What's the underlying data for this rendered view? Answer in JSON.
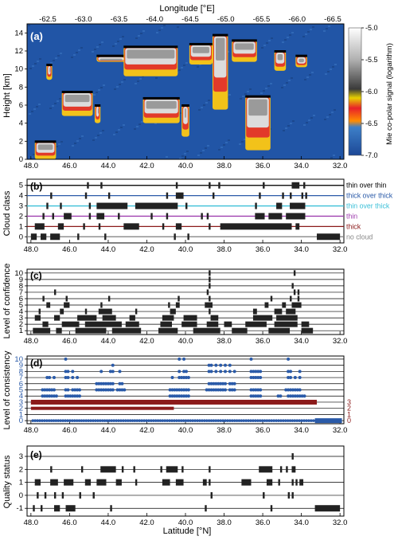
{
  "figure": {
    "top_axis_label": "Longitude [°E]",
    "bottom_axis_label": "Latitude [°N]",
    "longitude_ticks": [
      "-62.5",
      "-63.0",
      "-63.5",
      "-64.0",
      "-64.5",
      "-65.0",
      "-65.5",
      "-66.0",
      "-66.5"
    ],
    "latitude_ticks": [
      "48.0",
      "46.0",
      "44.0",
      "42.0",
      "40.0",
      "38.0",
      "36.0",
      "34.0",
      "32.0"
    ]
  },
  "chart_data": [
    {
      "panel": "(a)",
      "type": "heatmap",
      "ylabel": "Height [km]",
      "yticks": [
        "0",
        "2",
        "4",
        "6",
        "8",
        "10",
        "12",
        "14"
      ],
      "ylim": [
        0,
        15
      ],
      "colorbar": {
        "label": "Mie co-polar signal (logarithm)",
        "ticks": [
          "-5.0",
          "-5.5",
          "-6.0",
          "-6.5",
          "-7.0"
        ],
        "range": [
          -7.0,
          -5.0
        ]
      },
      "background_value": -6.8,
      "cloud_features": [
        {
          "lat": [
            47.8,
            46.7
          ],
          "top": 2.0,
          "base": 0.0
        },
        {
          "lat": [
            47.2,
            46.9
          ],
          "top": 10.5,
          "base": 8.8
        },
        {
          "lat": [
            46.4,
            44.8
          ],
          "top": 7.5,
          "base": 4.8
        },
        {
          "lat": [
            44.7,
            44.4
          ],
          "top": 6.0,
          "base": 4.0
        },
        {
          "lat": [
            44.6,
            43.1
          ],
          "top": 11.5,
          "base": 10.8
        },
        {
          "lat": [
            43.2,
            40.4
          ],
          "top": 12.5,
          "base": 9.2
        },
        {
          "lat": [
            42.2,
            40.3
          ],
          "top": 6.8,
          "base": 4.0
        },
        {
          "lat": [
            40.2,
            39.8
          ],
          "top": 6.0,
          "base": 2.5
        },
        {
          "lat": [
            39.8,
            38.6
          ],
          "top": 12.8,
          "base": 10.5
        },
        {
          "lat": [
            38.6,
            37.8
          ],
          "top": 13.8,
          "base": 5.5
        },
        {
          "lat": [
            37.6,
            36.3
          ],
          "top": 13.2,
          "base": 10.8
        },
        {
          "lat": [
            36.9,
            35.6
          ],
          "top": 7.0,
          "base": 1.0
        },
        {
          "lat": [
            35.4,
            34.8
          ],
          "top": 12.0,
          "base": 9.8
        },
        {
          "lat": [
            34.3,
            33.7
          ],
          "top": 11.5,
          "base": 10.2
        }
      ]
    },
    {
      "panel": "(b)",
      "type": "scatter",
      "ylabel": "Cloud class",
      "yticks": [
        "0",
        "1",
        "2",
        "3",
        "4",
        "5"
      ],
      "ylim": [
        -0.6,
        5.6
      ],
      "series": [
        {
          "name": "thin over thin",
          "level": 5,
          "color": "#000000",
          "segments": [
            [
              45.1,
              45.0
            ],
            [
              44.4,
              44.3
            ],
            [
              40.5,
              40.4
            ],
            [
              38.8,
              38.7
            ],
            [
              38.3,
              38.2
            ],
            [
              36.0,
              35.9
            ],
            [
              34.5,
              34.1
            ],
            [
              33.9,
              33.8
            ]
          ]
        },
        {
          "name": "thick over thick",
          "level": 4,
          "color": "#2a5aa8",
          "segments": [
            [
              47.0,
              46.9
            ],
            [
              45.2,
              45.1
            ],
            [
              44.0,
              43.9
            ],
            [
              41.0,
              40.9
            ],
            [
              40.5,
              40.1
            ],
            [
              38.6,
              38.5
            ],
            [
              36.2,
              36.1
            ],
            [
              35.0,
              34.9
            ],
            [
              34.6,
              34.5
            ],
            [
              34.0,
              33.9
            ],
            [
              33.8,
              33.7
            ]
          ]
        },
        {
          "name": "thin over thick",
          "level": 3,
          "color": "#3cc0d8",
          "segments": [
            [
              47.2,
              47.1
            ],
            [
              46.5,
              46.4
            ],
            [
              45.0,
              44.9
            ],
            [
              44.6,
              43.0
            ],
            [
              42.6,
              40.4
            ],
            [
              40.0,
              39.9
            ],
            [
              36.4,
              36.3
            ],
            [
              35.3,
              35.0
            ],
            [
              34.6,
              33.8
            ]
          ]
        },
        {
          "name": "thin",
          "level": 2,
          "color": "#a040b0",
          "segments": [
            [
              47.4,
              47.3
            ],
            [
              46.9,
              46.8
            ],
            [
              46.3,
              45.9
            ],
            [
              45.0,
              44.9
            ],
            [
              44.6,
              44.2
            ],
            [
              43.5,
              43.4
            ],
            [
              41.8,
              41.7
            ],
            [
              41.0,
              40.9
            ],
            [
              39.2,
              39.1
            ],
            [
              38.9,
              38.8
            ],
            [
              36.4,
              35.9
            ],
            [
              35.7,
              35.0
            ],
            [
              34.8,
              33.8
            ]
          ]
        },
        {
          "name": "thick",
          "level": 1,
          "color": "#8b1a1a",
          "segments": [
            [
              47.8,
              47.3
            ],
            [
              46.6,
              46.3
            ],
            [
              45.3,
              45.2
            ],
            [
              44.5,
              44.4
            ],
            [
              43.2,
              42.4
            ],
            [
              41.2,
              41.1
            ],
            [
              40.5,
              40.2
            ],
            [
              38.8,
              38.7
            ],
            [
              38.2,
              34.5
            ],
            [
              34.3,
              34.1
            ]
          ]
        },
        {
          "name": "no cloud",
          "level": 0,
          "color": "#888888",
          "segments": [
            [
              48.0,
              47.7
            ],
            [
              47.5,
              47.2
            ],
            [
              47.0,
              46.5
            ],
            [
              45.6,
              45.5
            ],
            [
              44.2,
              44.1
            ],
            [
              40.6,
              40.5
            ],
            [
              39.9,
              39.8
            ],
            [
              33.2,
              32.0
            ]
          ]
        }
      ]
    },
    {
      "panel": "(c)",
      "type": "scatter",
      "ylabel": "Level of confidence",
      "yticks": [
        "1",
        "2",
        "3",
        "4",
        "5",
        "6",
        "7",
        "8",
        "9",
        "10"
      ],
      "ylim": [
        0.4,
        10.6
      ],
      "rows": [
        {
          "level": 10,
          "segments": [
            [
              38.8,
              38.7
            ],
            [
              34.4,
              34.3
            ]
          ]
        },
        {
          "level": 9,
          "segments": [
            [
              38.8,
              38.7
            ]
          ]
        },
        {
          "level": 8,
          "segments": [
            [
              38.8,
              38.7
            ],
            [
              34.5,
              34.4
            ]
          ]
        },
        {
          "level": 7,
          "segments": [
            [
              46.8,
              46.7
            ],
            [
              38.9,
              38.8
            ],
            [
              34.4,
              34.3
            ],
            [
              34.2,
              34.1
            ]
          ]
        },
        {
          "level": 6,
          "segments": [
            [
              47.4,
              47.3
            ],
            [
              46.2,
              46.1
            ],
            [
              44.0,
              43.9
            ],
            [
              40.4,
              40.3
            ],
            [
              38.8,
              38.7
            ],
            [
              35.6,
              35.5
            ],
            [
              34.6,
              34.5
            ],
            [
              34.2,
              34.1
            ]
          ]
        },
        {
          "level": 5,
          "segments": [
            [
              47.2,
              47.0
            ],
            [
              46.3,
              46.0
            ],
            [
              44.4,
              44.3
            ],
            [
              40.9,
              40.8
            ],
            [
              40.5,
              40.3
            ],
            [
              39.0,
              38.6
            ],
            [
              35.9,
              35.7
            ],
            [
              35.0,
              34.8
            ],
            [
              34.5,
              34.0
            ]
          ]
        },
        {
          "level": 4,
          "segments": [
            [
              47.6,
              47.5
            ],
            [
              46.5,
              46.3
            ],
            [
              45.2,
              45.1
            ],
            [
              44.5,
              43.8
            ],
            [
              42.6,
              42.5
            ],
            [
              40.8,
              40.5
            ],
            [
              38.8,
              38.7
            ],
            [
              36.5,
              36.3
            ],
            [
              35.4,
              35.0
            ],
            [
              34.8,
              34.3
            ]
          ]
        },
        {
          "level": 3,
          "segments": [
            [
              47.8,
              47.5
            ],
            [
              46.8,
              46.5
            ],
            [
              45.6,
              44.6
            ],
            [
              44.3,
              43.6
            ],
            [
              42.9,
              42.6
            ],
            [
              41.2,
              40.6
            ],
            [
              40.1,
              39.4
            ],
            [
              38.7,
              38.3
            ],
            [
              36.5,
              35.5
            ],
            [
              35.3,
              34.2
            ]
          ]
        },
        {
          "level": 2,
          "segments": [
            [
              47.4,
              47.1
            ],
            [
              46.4,
              45.5
            ],
            [
              45.2,
              43.3
            ],
            [
              43.1,
              42.4
            ],
            [
              41.3,
              40.7
            ],
            [
              40.2,
              39.4
            ],
            [
              38.9,
              38.3
            ],
            [
              38.0,
              37.6
            ],
            [
              36.9,
              35.8
            ],
            [
              35.4,
              34.2
            ],
            [
              34.0,
              33.6
            ]
          ]
        },
        {
          "level": 1,
          "segments": [
            [
              47.9,
              47.0
            ],
            [
              46.7,
              46.4
            ],
            [
              45.7,
              44.1
            ],
            [
              43.8,
              42.3
            ],
            [
              41.4,
              40.4
            ],
            [
              39.6,
              38.2
            ],
            [
              37.6,
              36.8
            ],
            [
              35.7,
              34.6
            ],
            [
              34.0,
              33.4
            ]
          ]
        }
      ]
    },
    {
      "panel": "(d)",
      "type": "scatter",
      "ylabel": "Level of consistency",
      "yticks": [
        "0",
        "1",
        "2",
        "3",
        "4",
        "5",
        "6",
        "7",
        "8",
        "9",
        "10"
      ],
      "ylim": [
        -0.5,
        10.5
      ],
      "right_ticks": [
        "3",
        "2",
        "1",
        "0"
      ],
      "series": [
        {
          "color": "#2a5aa8",
          "ranges": [
            [
              47.4,
              46.6
            ],
            [
              46.2,
              45.4
            ],
            [
              44.6,
              43.1
            ],
            [
              40.8,
              39.8
            ],
            [
              38.9,
              37.3
            ],
            [
              36.6,
              36.1
            ],
            [
              35.2,
              35.0
            ],
            [
              34.8,
              33.8
            ]
          ]
        },
        {
          "color": "#8b1a1a",
          "ranges": [
            [
              48.0,
              33.2
            ]
          ]
        }
      ]
    },
    {
      "panel": "(e)",
      "type": "scatter",
      "ylabel": "Quality status",
      "yticks": [
        "-1",
        "0",
        "1",
        "2",
        "3"
      ],
      "ylim": [
        -1.6,
        3.8
      ],
      "rows": [
        {
          "level": 3,
          "segments": [
            [
              34.5,
              34.4
            ]
          ]
        },
        {
          "level": 2,
          "segments": [
            [
              47.0,
              46.9
            ],
            [
              45.4,
              45.3
            ],
            [
              44.4,
              43.6
            ],
            [
              43.3,
              43.2
            ],
            [
              42.7,
              42.6
            ],
            [
              41.3,
              41.2
            ],
            [
              41.0,
              40.4
            ],
            [
              40.2,
              40.1
            ],
            [
              38.8,
              38.7
            ],
            [
              36.2,
              35.5
            ],
            [
              35.1,
              35.0
            ],
            [
              34.8,
              34.7
            ],
            [
              34.5,
              34.3
            ]
          ]
        },
        {
          "level": 1,
          "segments": [
            [
              47.8,
              47.5
            ],
            [
              47.0,
              46.6
            ],
            [
              46.3,
              45.8
            ],
            [
              45.2,
              44.9
            ],
            [
              44.6,
              44.1
            ],
            [
              43.6,
              43.3
            ],
            [
              42.6,
              42.5
            ],
            [
              41.2,
              40.8
            ],
            [
              40.5,
              40.1
            ],
            [
              39.1,
              38.9
            ],
            [
              38.8,
              38.7
            ],
            [
              37.1,
              36.6
            ],
            [
              35.8,
              35.5
            ],
            [
              35.2,
              35.1
            ],
            [
              34.5,
              34.4
            ],
            [
              34.3,
              34.2
            ],
            [
              34.1,
              33.9
            ]
          ]
        },
        {
          "level": 0,
          "segments": [
            [
              47.7,
              47.6
            ],
            [
              47.3,
              47.2
            ],
            [
              46.8,
              46.7
            ],
            [
              46.4,
              46.3
            ],
            [
              45.5,
              45.4
            ],
            [
              44.8,
              44.7
            ],
            [
              38.7,
              38.6
            ],
            [
              36.0,
              35.9
            ],
            [
              34.7,
              34.6
            ],
            [
              34.5,
              34.4
            ]
          ]
        },
        {
          "level": -1,
          "segments": [
            [
              47.9,
              47.8
            ],
            [
              47.5,
              47.4
            ],
            [
              46.8,
              46.5
            ],
            [
              46.2,
              45.7
            ],
            [
              43.9,
              43.8
            ],
            [
              39.0,
              38.9
            ],
            [
              35.6,
              35.5
            ],
            [
              33.3,
              32.0
            ]
          ]
        }
      ]
    }
  ]
}
